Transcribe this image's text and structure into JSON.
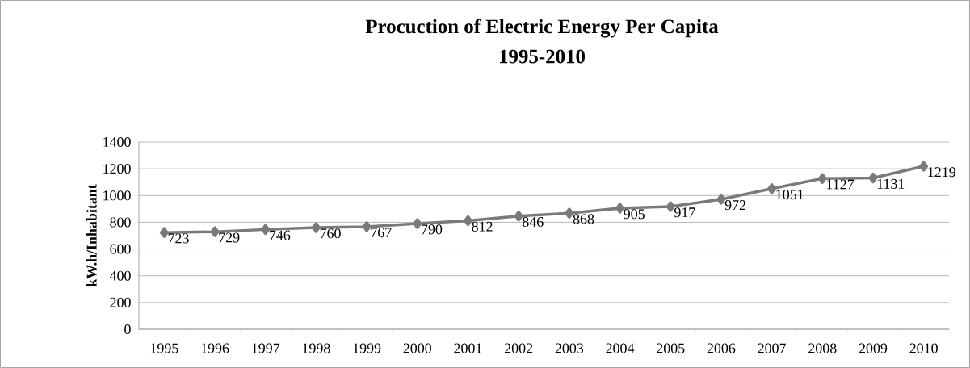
{
  "chart_data": {
    "type": "line",
    "title": "Procuction of Electric Energy Per Capita",
    "subtitle": "1995-2010",
    "ylabel": "kW.h/Inhabitant",
    "categories": [
      "1995",
      "1996",
      "1997",
      "1998",
      "1999",
      "2000",
      "2001",
      "2002",
      "2003",
      "2004",
      "2005",
      "2006",
      "2007",
      "2008",
      "2009",
      "2010"
    ],
    "series": [
      {
        "color": "#7a7a7a",
        "values": [
          723,
          729,
          746,
          760,
          767,
          790,
          812,
          846,
          868,
          905,
          917,
          972,
          1051,
          1127,
          1131,
          1219
        ]
      }
    ],
    "ylim": [
      0,
      1400
    ],
    "yticks": [
      0,
      200,
      400,
      600,
      800,
      1000,
      1200,
      1400
    ],
    "grid": "y",
    "marker": "diamond",
    "line_style": "solid",
    "data_labels": true
  }
}
